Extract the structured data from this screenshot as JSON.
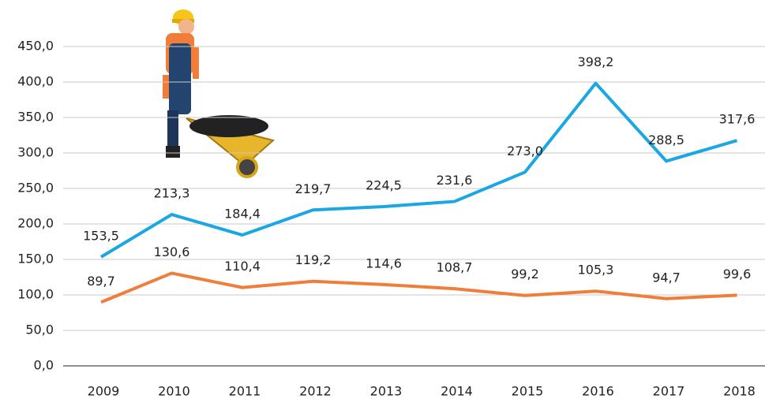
{
  "chart_data": {
    "type": "line",
    "categories": [
      "2009",
      "2010",
      "2011",
      "2012",
      "2013",
      "2014",
      "2015",
      "2016",
      "2017",
      "2018"
    ],
    "series": [
      {
        "color": "#1aa7e3",
        "values": [
          153.5,
          213.3,
          184.4,
          219.7,
          224.5,
          231.6,
          273.0,
          398.2,
          288.5,
          317.6
        ],
        "value_labels": [
          "153,5",
          "213,3",
          "184,4",
          "219,7",
          "224,5",
          "231,6",
          "273,0",
          "398,2",
          "288,5",
          "317,6"
        ]
      },
      {
        "color": "#ef7d3c",
        "values": [
          89.7,
          130.6,
          110.4,
          119.2,
          114.6,
          108.7,
          99.2,
          105.3,
          94.7,
          99.6
        ],
        "value_labels": [
          "89,7",
          "130,6",
          "110,4",
          "119,2",
          "114,6",
          "108,7",
          "99,2",
          "105,3",
          "94,7",
          "99,6"
        ]
      }
    ],
    "ylim": [
      0,
      450
    ],
    "yticks": [
      {
        "value": 0,
        "label": "0,0"
      },
      {
        "value": 50,
        "label": "50,0"
      },
      {
        "value": 100,
        "label": "100,0"
      },
      {
        "value": 150,
        "label": "150,0"
      },
      {
        "value": 200,
        "label": "200,0"
      },
      {
        "value": 250,
        "label": "250,0"
      },
      {
        "value": 300,
        "label": "300,0"
      },
      {
        "value": 350,
        "label": "350,0"
      },
      {
        "value": 400,
        "label": "400,0"
      },
      {
        "value": 450,
        "label": "450,0"
      }
    ],
    "grid": true
  }
}
